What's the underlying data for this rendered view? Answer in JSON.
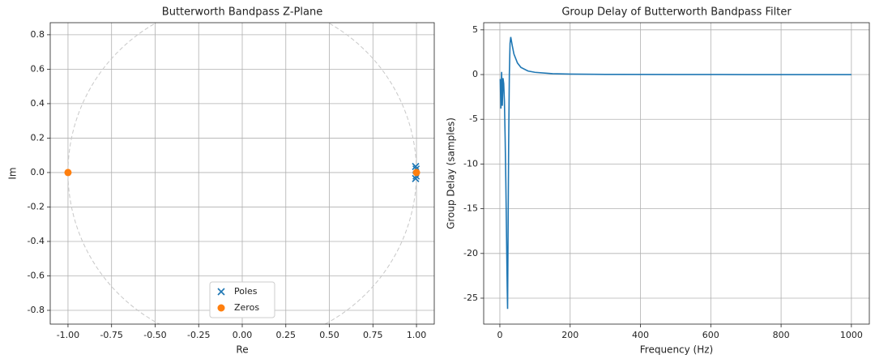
{
  "chart_data": [
    {
      "type": "scatter",
      "title": "Butterworth Bandpass Z-Plane",
      "xlabel": "Re",
      "ylabel": "Im",
      "xlim": [
        -1.102,
        1.102
      ],
      "ylim": [
        -0.88,
        0.87
      ],
      "xticks": [
        {
          "value": -1,
          "label": "-1.00"
        },
        {
          "value": -0.75,
          "label": "-0.75"
        },
        {
          "value": -0.5,
          "label": "-0.50"
        },
        {
          "value": -0.25,
          "label": "-0.25"
        },
        {
          "value": 0,
          "label": "0.00"
        },
        {
          "value": 0.25,
          "label": "0.25"
        },
        {
          "value": 0.5,
          "label": "0.50"
        },
        {
          "value": 0.75,
          "label": "0.75"
        },
        {
          "value": 1,
          "label": "1.00"
        }
      ],
      "yticks": [
        -0.8,
        -0.6,
        -0.4,
        -0.2,
        {
          "value": 0,
          "label": "0.0"
        },
        0.2,
        0.4,
        0.6,
        0.8
      ],
      "grid": true,
      "unit_circle": true,
      "legend": "lower center",
      "series": [
        {
          "name": "Poles",
          "color": "#1f77b4",
          "marker": "x",
          "x": [
            0.995,
            0.995,
            0.998,
            0.998
          ],
          "values": [
            0.035,
            -0.035,
            0.02,
            -0.02
          ]
        },
        {
          "name": "Zeros",
          "color": "#ff7f0e",
          "marker": "o",
          "x": [
            -1,
            1
          ],
          "values": [
            0,
            0
          ]
        }
      ]
    },
    {
      "type": "line",
      "title": "Group Delay of Butterworth Bandpass Filter",
      "xlabel": "Frequency (Hz)",
      "ylabel": "Group Delay (samples)",
      "xlim": [
        -46,
        1051
      ],
      "ylim": [
        -27.9,
        5.8
      ],
      "xticks": [
        0,
        200,
        400,
        600,
        800,
        1000
      ],
      "yticks": [
        5,
        0,
        -5,
        -10,
        -15,
        -20,
        -25
      ],
      "grid": true,
      "color": "#1f77b4",
      "x": [
        1,
        3,
        5,
        7,
        9,
        11,
        13,
        15,
        17,
        19,
        21,
        22,
        23,
        25,
        27,
        29,
        31,
        35,
        40,
        50,
        60,
        80,
        100,
        150,
        200,
        300,
        500,
        700,
        1000
      ],
      "values": [
        -0.5,
        -3.8,
        0.3,
        -3.5,
        -0.4,
        -1.0,
        -3.0,
        -7,
        -12,
        -18,
        -24,
        -26.2,
        -20,
        -8,
        0,
        3.5,
        4.2,
        3.3,
        2.3,
        1.3,
        0.8,
        0.4,
        0.25,
        0.1,
        0.05,
        0.02,
        0.01,
        0.0,
        0.0
      ]
    }
  ]
}
